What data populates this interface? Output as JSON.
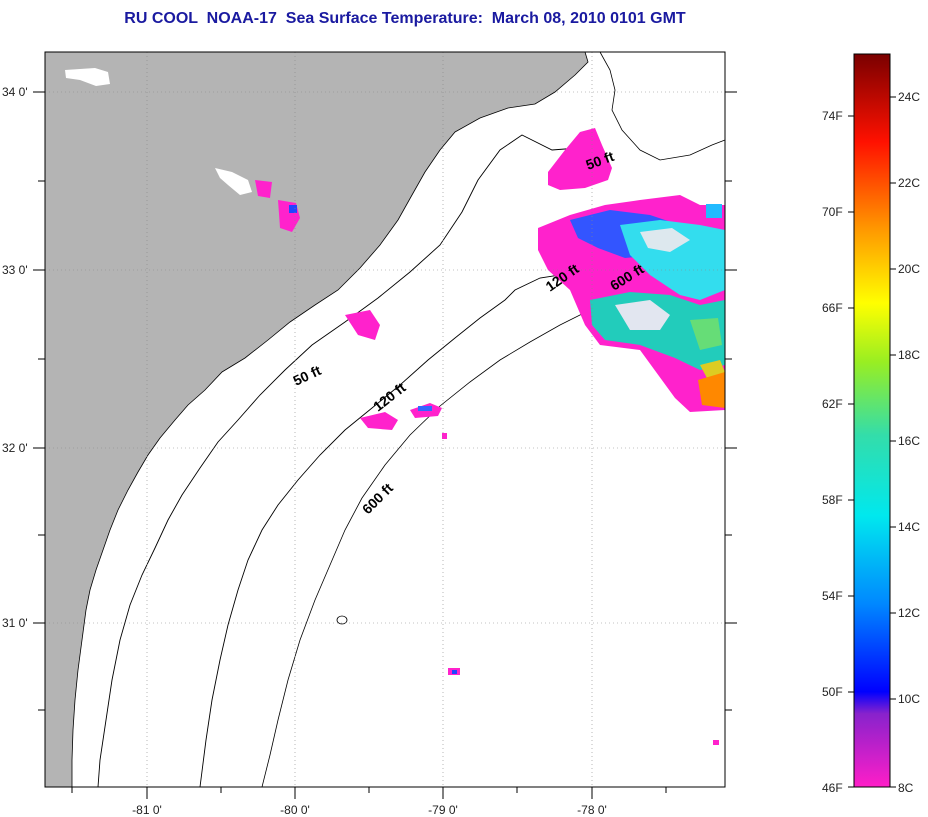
{
  "title": "RU COOL  NOAA-17  Sea Surface Temperature:  March 08, 2010 0101 GMT",
  "lat_labels": [
    "34 0'",
    "33 0'",
    "32 0'",
    "31 0'"
  ],
  "lon_labels": [
    "-81 0'",
    "-80 0'",
    "-79 0'",
    "-78 0'"
  ],
  "depth_labels": [
    "50 ft",
    "50 ft",
    "120 ft",
    "120 ft",
    "600 ft",
    "600 ft"
  ],
  "colorbar": {
    "fahrenheit": [
      "74F",
      "70F",
      "66F",
      "62F",
      "58F",
      "54F",
      "50F",
      "46F"
    ],
    "celsius": [
      "24C",
      "22C",
      "20C",
      "18C",
      "16C",
      "14C",
      "12C",
      "10C",
      "8C"
    ]
  },
  "colors": {
    "land": "#b4b4b4",
    "title": "#1a1aa0",
    "cold": "#ff22cc",
    "warm": "#ff8800"
  }
}
